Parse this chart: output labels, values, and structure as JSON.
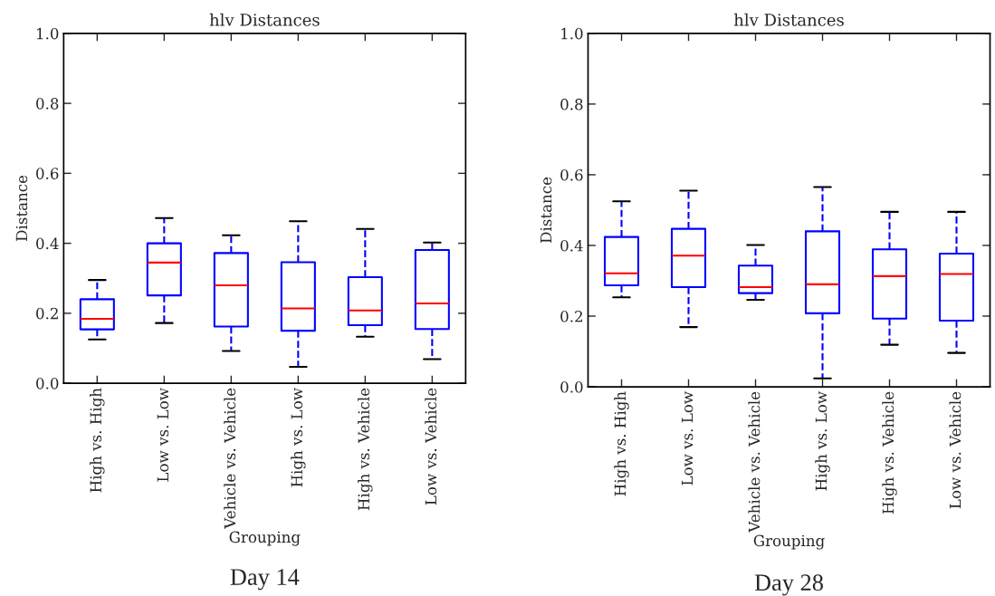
{
  "chart_data": [
    {
      "type": "box",
      "title": "hlv Distances",
      "xlabel": "Grouping",
      "ylabel": "Distance",
      "annotations": [
        "Day 14"
      ],
      "categories": [
        "High vs. High",
        "Low vs. Low",
        "Vehicle vs. Vehicle",
        "High vs. Low",
        "High vs. Vehicle",
        "Low vs. Vehicle"
      ],
      "ylim": [
        0,
        1
      ],
      "yticks": [
        {
          "value": 0,
          "label": "0.0"
        },
        {
          "value": 0.2,
          "label": "0.2"
        },
        {
          "value": 0.4,
          "label": "0.4"
        },
        {
          "value": 0.6,
          "label": "0.6"
        },
        {
          "value": 0.8,
          "label": "0.8"
        },
        {
          "value": 1,
          "label": "1.0"
        }
      ],
      "grid": false,
      "legend": false,
      "line_style": "dashed",
      "series": [
        {
          "color": "#0000ff",
          "boxes": [
            {
              "low": 0.125,
              "q1": 0.154,
              "median": 0.184,
              "q3": 0.24,
              "high": 0.295
            },
            {
              "low": 0.172,
              "q1": 0.251,
              "median": 0.345,
              "q3": 0.4,
              "high": 0.472
            },
            {
              "low": 0.092,
              "q1": 0.162,
              "median": 0.28,
              "q3": 0.372,
              "high": 0.423
            },
            {
              "low": 0.047,
              "q1": 0.15,
              "median": 0.214,
              "q3": 0.346,
              "high": 0.463
            },
            {
              "low": 0.133,
              "q1": 0.166,
              "median": 0.208,
              "q3": 0.303,
              "high": 0.441
            },
            {
              "low": 0.069,
              "q1": 0.155,
              "median": 0.228,
              "q3": 0.381,
              "high": 0.402
            }
          ]
        }
      ]
    },
    {
      "type": "box",
      "title": "hlv Distances",
      "xlabel": "Grouping",
      "ylabel": "Distance",
      "annotations": [
        "Day 28"
      ],
      "categories": [
        "High vs. High",
        "Low vs. Low",
        "Vehicle vs. Vehicle",
        "High vs. Low",
        "High vs. Vehicle",
        "Low vs. Vehicle"
      ],
      "ylim": [
        0,
        1
      ],
      "yticks": [
        {
          "value": 0,
          "label": "0.0"
        },
        {
          "value": 0.2,
          "label": "0.2"
        },
        {
          "value": 0.4,
          "label": "0.4"
        },
        {
          "value": 0.6,
          "label": "0.6"
        },
        {
          "value": 0.8,
          "label": "0.8"
        },
        {
          "value": 1,
          "label": "1.0"
        }
      ],
      "grid": false,
      "legend": false,
      "line_style": "dashed",
      "series": [
        {
          "color": "#0000ff",
          "boxes": [
            {
              "low": 0.253,
              "q1": 0.287,
              "median": 0.321,
              "q3": 0.424,
              "high": 0.525
            },
            {
              "low": 0.169,
              "q1": 0.282,
              "median": 0.371,
              "q3": 0.447,
              "high": 0.555
            },
            {
              "low": 0.246,
              "q1": 0.265,
              "median": 0.282,
              "q3": 0.343,
              "high": 0.401
            },
            {
              "low": 0.024,
              "q1": 0.208,
              "median": 0.29,
              "q3": 0.44,
              "high": 0.565
            },
            {
              "low": 0.119,
              "q1": 0.193,
              "median": 0.313,
              "q3": 0.389,
              "high": 0.495
            },
            {
              "low": 0.096,
              "q1": 0.187,
              "median": 0.319,
              "q3": 0.377,
              "high": 0.495
            }
          ]
        }
      ]
    }
  ]
}
